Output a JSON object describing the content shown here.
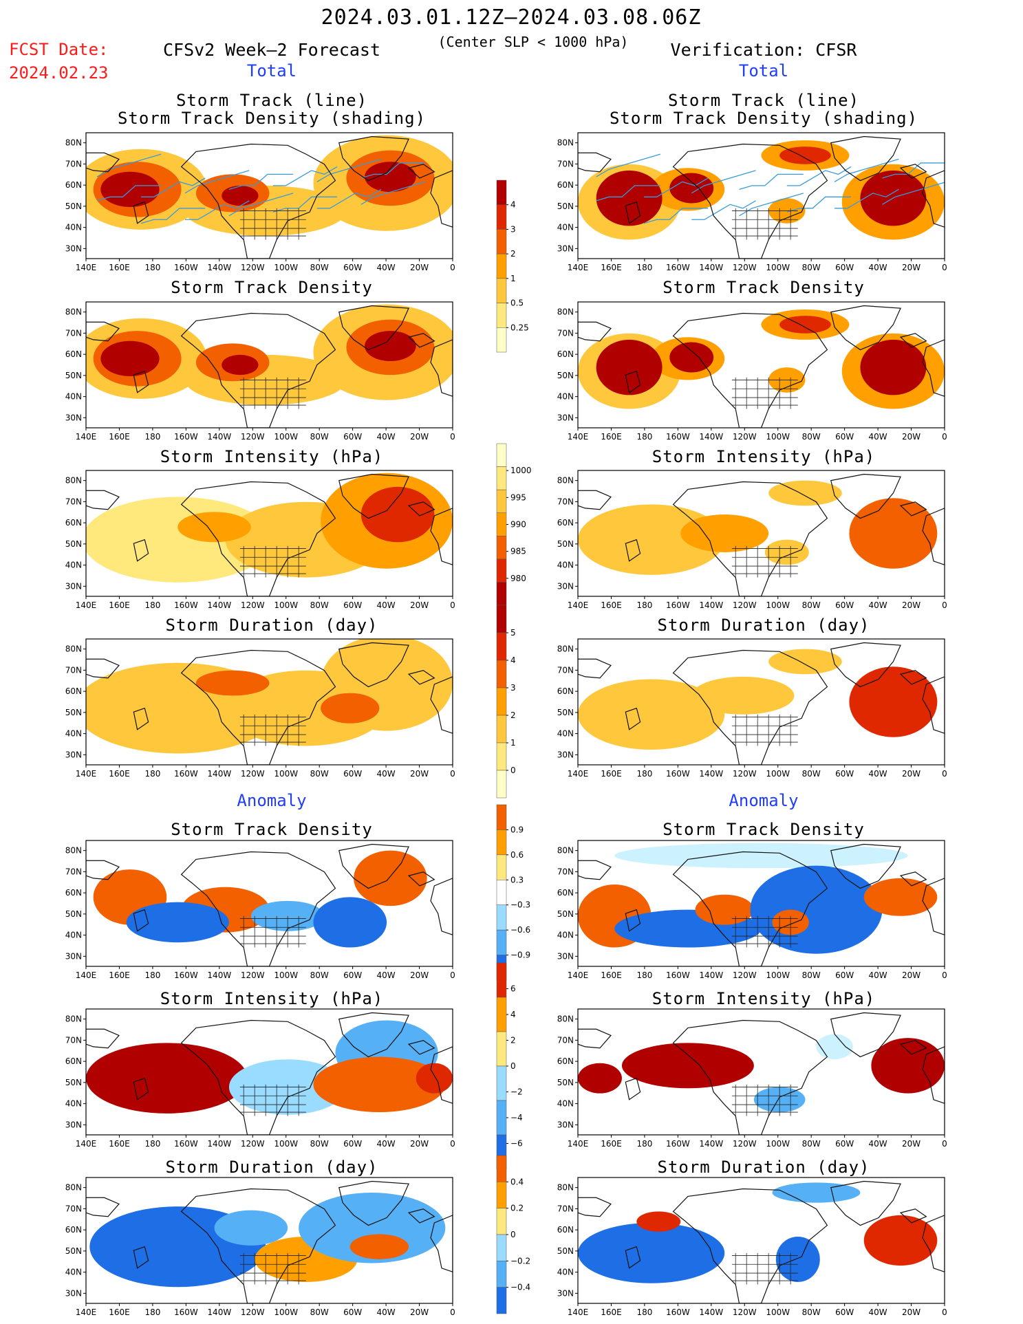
{
  "header": {
    "date_range": "2024.03.01.12Z–2024.03.08.06Z",
    "criterion": "(Center SLP < 1000 hPa)",
    "fcst_label": "FCST Date:",
    "fcst_date": "2024.02.23",
    "left_title": "CFSv2 Week–2 Forecast",
    "right_title": "Verification: CFSR"
  },
  "section_labels": {
    "total": "Total",
    "anomaly": "Anomaly"
  },
  "panel_titles": {
    "track_line": "Storm Track (line)",
    "track_shading": "Storm Track Density (shading)",
    "density": "Storm Track Density",
    "intensity": "Storm Intensity (hPa)",
    "duration": "Storm Duration (day)"
  },
  "axes": {
    "lat_ticks": [
      "80N",
      "70N",
      "60N",
      "50N",
      "40N",
      "30N"
    ],
    "lon_ticks": [
      "140E",
      "160E",
      "180",
      "160W",
      "140W",
      "120W",
      "100W",
      "80W",
      "60W",
      "40W",
      "20W",
      "0"
    ]
  },
  "colorbars": {
    "density_total": [
      "4",
      "3",
      "2",
      "1",
      "0.5",
      "0.25"
    ],
    "intensity_total": [
      "1000",
      "995",
      "990",
      "985",
      "980"
    ],
    "duration_total": [
      "5",
      "4",
      "3",
      "2",
      "1",
      "0"
    ],
    "density_anom": [
      "0.9",
      "0.6",
      "0.3",
      "−0.3",
      "−0.6",
      "−0.9"
    ],
    "intensity_anom": [
      "6",
      "4",
      "2",
      "0",
      "−2",
      "−4",
      "−6"
    ],
    "duration_anom": [
      "0.4",
      "0.2",
      "0",
      "−0.2",
      "−0.4"
    ]
  },
  "colors": {
    "warm": [
      "#ffffc8",
      "#ffe87c",
      "#ffc83c",
      "#ffa000",
      "#f26000",
      "#e02800",
      "#b00000"
    ],
    "cool": [
      "#ccf2ff",
      "#99dcff",
      "#56b0f5",
      "#1e6fe6"
    ],
    "track_line": "#3a9ad9",
    "label_red": "#ff1a1a",
    "label_blue": "#1f3dff"
  }
}
